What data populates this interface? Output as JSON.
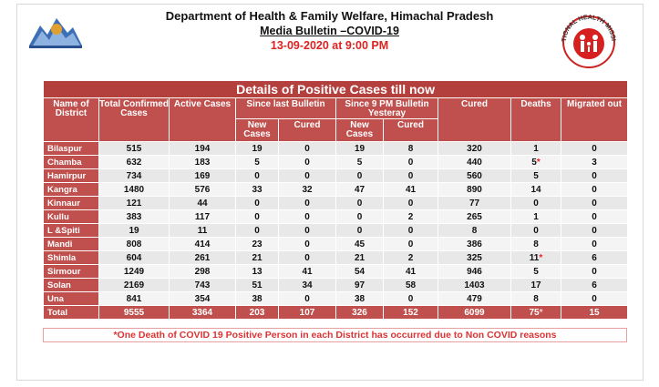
{
  "header": {
    "title": "Department of Health & Family Welfare, Himachal Pradesh",
    "subtitle": "Media Bulletin –COVID-19",
    "date": "13-09-2020 at 9:00 PM"
  },
  "logo_text": "NATIONAL HEALTH MISSION",
  "table": {
    "caption": "Details of Positive Cases till now",
    "columns": [
      "Name of District",
      "Total Confirmed Cases",
      "Active Cases",
      "Since last Bulletin",
      "Since 9 PM Bulletin Yesteray",
      "Cured",
      "Deaths",
      "Migrated out"
    ],
    "subcolumns": [
      "New Cases",
      "Cured",
      "New Cases",
      "Cured"
    ],
    "rows": [
      [
        "Bilaspur",
        515,
        194,
        19,
        0,
        19,
        8,
        320,
        1,
        0
      ],
      [
        "Chamba",
        632,
        183,
        5,
        0,
        5,
        0,
        440,
        "5*",
        3
      ],
      [
        "Hamirpur",
        734,
        169,
        0,
        0,
        0,
        0,
        560,
        5,
        0
      ],
      [
        "Kangra",
        1480,
        576,
        33,
        32,
        47,
        41,
        890,
        14,
        0
      ],
      [
        "Kinnaur",
        121,
        44,
        0,
        0,
        0,
        0,
        77,
        0,
        0
      ],
      [
        "Kullu",
        383,
        117,
        0,
        0,
        0,
        2,
        265,
        1,
        0
      ],
      [
        "L &Spiti",
        19,
        11,
        0,
        0,
        0,
        0,
        8,
        0,
        0
      ],
      [
        "Mandi",
        808,
        414,
        23,
        0,
        45,
        0,
        386,
        8,
        0
      ],
      [
        "Shimla",
        604,
        261,
        21,
        0,
        21,
        2,
        325,
        "11*",
        6
      ],
      [
        "Sirmour",
        1249,
        298,
        13,
        41,
        54,
        41,
        946,
        5,
        0
      ],
      [
        "Solan",
        2169,
        743,
        51,
        34,
        97,
        58,
        1403,
        17,
        6
      ],
      [
        "Una",
        841,
        354,
        38,
        0,
        38,
        0,
        479,
        8,
        0
      ]
    ],
    "total": [
      "Total",
      9555,
      3364,
      203,
      107,
      326,
      152,
      6099,
      "75*",
      15
    ]
  },
  "note": "*One Death of COVID 19 Positive Person in each District has occurred due to Non COVID reasons"
}
